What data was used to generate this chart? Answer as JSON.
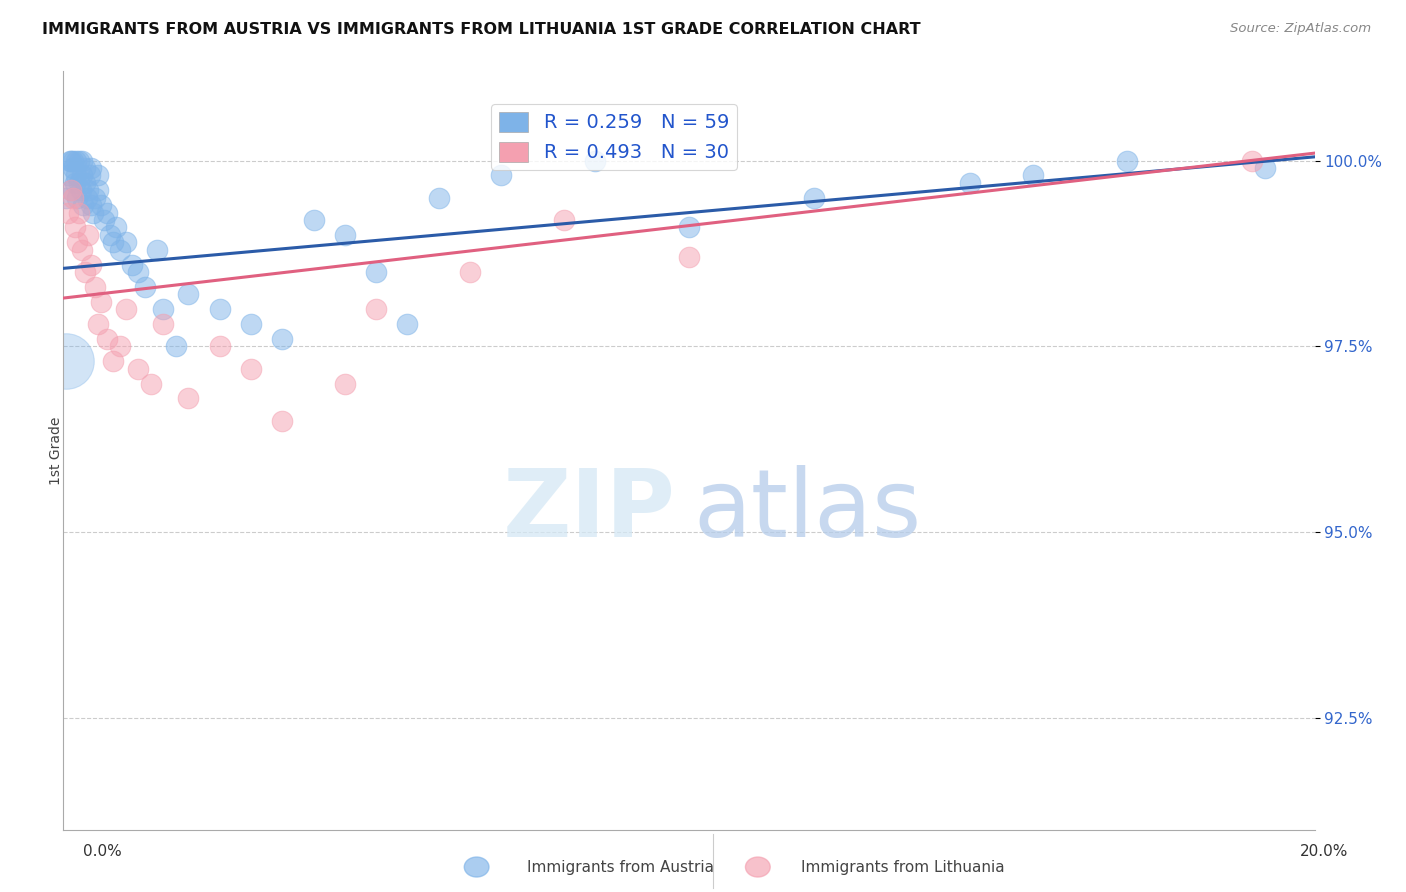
{
  "title": "IMMIGRANTS FROM AUSTRIA VS IMMIGRANTS FROM LITHUANIA 1ST GRADE CORRELATION CHART",
  "source": "Source: ZipAtlas.com",
  "ylabel": "1st Grade",
  "xlim": [
    0.0,
    20.0
  ],
  "ylim": [
    91.0,
    101.2
  ],
  "yticks": [
    92.5,
    95.0,
    97.5,
    100.0
  ],
  "ytick_labels": [
    "92.5%",
    "95.0%",
    "97.5%",
    "100.0%"
  ],
  "austria_color": "#7EB3E8",
  "lithuania_color": "#F4A0B0",
  "austria_line_color": "#2B5BA8",
  "lithuania_line_color": "#E06080",
  "austria_R": 0.259,
  "austria_N": 59,
  "lithuania_R": 0.493,
  "lithuania_N": 30,
  "austria_line_x0": 0.0,
  "austria_line_y0": 98.55,
  "austria_line_x1": 20.0,
  "austria_line_y1": 100.05,
  "lithuania_line_x0": 0.0,
  "lithuania_line_y0": 98.15,
  "lithuania_line_x1": 20.0,
  "lithuania_line_y1": 100.1,
  "austria_x": [
    0.05,
    0.08,
    0.1,
    0.12,
    0.13,
    0.15,
    0.15,
    0.18,
    0.2,
    0.2,
    0.22,
    0.25,
    0.25,
    0.28,
    0.3,
    0.3,
    0.32,
    0.35,
    0.35,
    0.38,
    0.4,
    0.42,
    0.45,
    0.45,
    0.48,
    0.5,
    0.55,
    0.55,
    0.6,
    0.65,
    0.7,
    0.75,
    0.8,
    0.85,
    0.9,
    1.0,
    1.1,
    1.2,
    1.3,
    1.5,
    1.6,
    1.8,
    2.0,
    2.5,
    3.0,
    3.5,
    4.0,
    4.5,
    5.0,
    5.5,
    6.0,
    7.0,
    8.5,
    10.0,
    12.0,
    14.5,
    15.5,
    17.0,
    19.2
  ],
  "austria_y": [
    99.5,
    99.8,
    100.0,
    100.0,
    99.6,
    99.9,
    100.0,
    99.7,
    99.8,
    100.0,
    99.5,
    99.7,
    100.0,
    99.6,
    99.8,
    100.0,
    99.4,
    99.7,
    99.9,
    99.5,
    99.6,
    99.8,
    99.4,
    99.9,
    99.3,
    99.5,
    99.6,
    99.8,
    99.4,
    99.2,
    99.3,
    99.0,
    98.9,
    99.1,
    98.8,
    98.9,
    98.6,
    98.5,
    98.3,
    98.8,
    98.0,
    97.5,
    98.2,
    98.0,
    97.8,
    97.6,
    99.2,
    99.0,
    98.5,
    97.8,
    99.5,
    99.8,
    100.0,
    99.1,
    99.5,
    99.7,
    99.8,
    100.0,
    99.9
  ],
  "austria_sizes_raw": [
    80,
    80,
    80,
    80,
    80,
    80,
    80,
    80,
    80,
    80,
    80,
    80,
    80,
    80,
    80,
    80,
    80,
    80,
    80,
    80,
    80,
    80,
    80,
    80,
    80,
    80,
    80,
    80,
    80,
    80,
    80,
    80,
    80,
    80,
    80,
    80,
    80,
    80,
    80,
    80,
    80,
    80,
    80,
    80,
    80,
    80,
    80,
    80,
    80,
    80,
    80,
    80,
    80,
    80,
    80,
    80,
    80,
    80,
    80
  ],
  "austria_large_x": 0.05,
  "austria_large_y": 97.3,
  "austria_large_size": 1600,
  "lithuania_x": [
    0.08,
    0.12,
    0.15,
    0.18,
    0.22,
    0.25,
    0.3,
    0.35,
    0.4,
    0.45,
    0.5,
    0.55,
    0.6,
    0.7,
    0.8,
    0.9,
    1.0,
    1.2,
    1.4,
    1.6,
    2.0,
    2.5,
    3.0,
    3.5,
    4.5,
    5.0,
    6.5,
    8.0,
    10.0,
    19.0
  ],
  "lithuania_y": [
    99.3,
    99.6,
    99.5,
    99.1,
    98.9,
    99.3,
    98.8,
    98.5,
    99.0,
    98.6,
    98.3,
    97.8,
    98.1,
    97.6,
    97.3,
    97.5,
    98.0,
    97.2,
    97.0,
    97.8,
    96.8,
    97.5,
    97.2,
    96.5,
    97.0,
    98.0,
    98.5,
    99.2,
    98.7,
    100.0
  ],
  "lithuania_sizes_raw": [
    80,
    80,
    80,
    80,
    80,
    80,
    80,
    80,
    80,
    80,
    80,
    80,
    80,
    80,
    80,
    80,
    80,
    80,
    80,
    80,
    80,
    80,
    80,
    80,
    80,
    80,
    80,
    80,
    80,
    80
  ]
}
